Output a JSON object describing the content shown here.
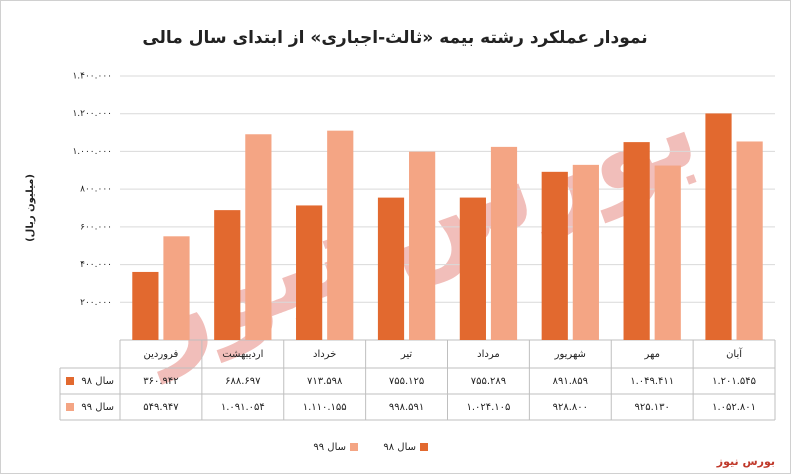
{
  "chart_data": {
    "type": "bar",
    "title": "نمودار عملکرد رشته بیمه «ثالث-اجباری» از ابتدای سال مالی",
    "y_label": "(میلیون ریال)",
    "source": "بورس نیوز",
    "categories": [
      "فروردین",
      "اردیبهشت",
      "خرداد",
      "تیر",
      "مرداد",
      "شهریور",
      "مهر",
      "آبان"
    ],
    "series": [
      {
        "name": "سال ۹۸",
        "color": "#e2692f",
        "values": [
          360942,
          688697,
          713598,
          755125,
          755289,
          891859,
          1049411,
          1201545
        ],
        "value_labels": [
          "۳۶۰.۹۴۲",
          "۶۸۸.۶۹۷",
          "۷۱۳.۵۹۸",
          "۷۵۵.۱۲۵",
          "۷۵۵.۲۸۹",
          "۸۹۱.۸۵۹",
          "۱.۰۴۹.۴۱۱",
          "۱.۲۰۱.۵۴۵"
        ]
      },
      {
        "name": "سال ۹۹",
        "color": "#f4a584",
        "values": [
          549947,
          1091054,
          1110155,
          998591,
          1024105,
          928800,
          925130,
          1052801
        ],
        "value_labels": [
          "۵۴۹.۹۴۷",
          "۱.۰۹۱.۰۵۴",
          "۱.۱۱۰.۱۵۵",
          "۹۹۸.۵۹۱",
          "۱.۰۲۴.۱۰۵",
          "۹۲۸.۸۰۰",
          "۹۲۵.۱۳۰",
          "۱.۰۵۲.۸۰۱"
        ]
      }
    ],
    "ylim": [
      0,
      1400000
    ],
    "yticks": [
      {
        "value": 200000,
        "label": "۲۰۰.۰۰۰"
      },
      {
        "value": 400000,
        "label": "۴۰۰.۰۰۰"
      },
      {
        "value": 600000,
        "label": "۶۰۰.۰۰۰"
      },
      {
        "value": 800000,
        "label": "۸۰۰.۰۰۰"
      },
      {
        "value": 1000000,
        "label": "۱.۰۰۰.۰۰۰"
      },
      {
        "value": 1200000,
        "label": "۱.۲۰۰.۰۰۰"
      },
      {
        "value": 1400000,
        "label": "۱.۴۰۰.۰۰۰"
      }
    ],
    "grid": true
  }
}
